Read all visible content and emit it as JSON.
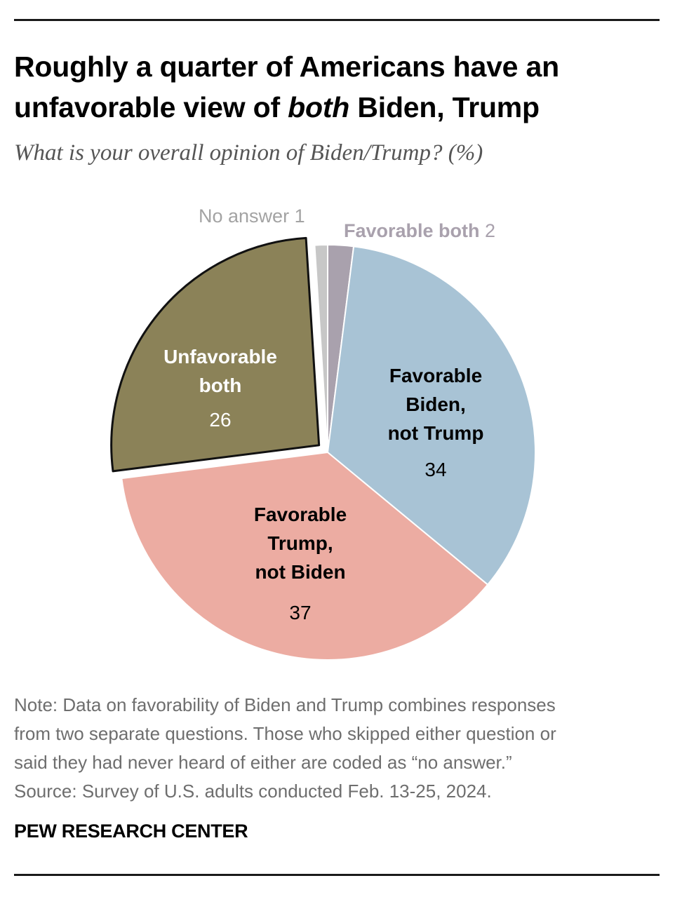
{
  "header": {
    "title_part1": "Roughly a quarter of Americans have an unfavorable view of ",
    "title_emph": "both",
    "title_part2": " Biden, Trump",
    "subtitle": "What is your overall opinion of Biden/Trump? (%)"
  },
  "chart_data": {
    "type": "pie",
    "title": "Roughly a quarter of Americans have an unfavorable view of both Biden, Trump",
    "subtitle": "What is your overall opinion of Biden/Trump? (%)",
    "unit": "%",
    "start": "top, clockwise",
    "slices": [
      {
        "name": "Favorable both",
        "label_lines": [
          "Favorable both"
        ],
        "value": 2,
        "color": "#a9a1ad",
        "label_color": "#a9a1ad",
        "value_color": "#a9a1ad",
        "label_placement": "outside-top-right",
        "exploded": false
      },
      {
        "name": "Favorable Biden, not Trump",
        "label_lines": [
          "Favorable",
          "Biden,",
          "not Trump"
        ],
        "value": 34,
        "color": "#a8c3d5",
        "label_color": "#000000",
        "value_color": "#000000",
        "label_placement": "inside",
        "exploded": false
      },
      {
        "name": "Favorable Trump, not Biden",
        "label_lines": [
          "Favorable",
          "Trump,",
          "not Biden"
        ],
        "value": 37,
        "color": "#ecaca2",
        "label_color": "#000000",
        "value_color": "#000000",
        "label_placement": "inside",
        "exploded": false
      },
      {
        "name": "Unfavorable both",
        "label_lines": [
          "Unfavorable",
          "both"
        ],
        "value": 26,
        "color": "#8b8258",
        "label_color": "#ffffff",
        "value_color": "#ffffff",
        "label_placement": "inside",
        "exploded": true
      },
      {
        "name": "No answer",
        "label_lines": [
          "No answer"
        ],
        "value": 1,
        "color": "#c7c7c7",
        "label_color": "#a3a3a3",
        "value_color": "#a3a3a3",
        "label_placement": "outside-top-left",
        "exploded": false
      }
    ]
  },
  "footer": {
    "note_lines": [
      "Note: Data on favorability of Biden and Trump combines responses",
      "from two separate questions. Those who skipped either question or",
      "said they had never heard of either are coded as “no answer.”",
      "Source: Survey of U.S. adults conducted Feb. 13-25, 2024."
    ],
    "brand": "PEW RESEARCH CENTER"
  }
}
